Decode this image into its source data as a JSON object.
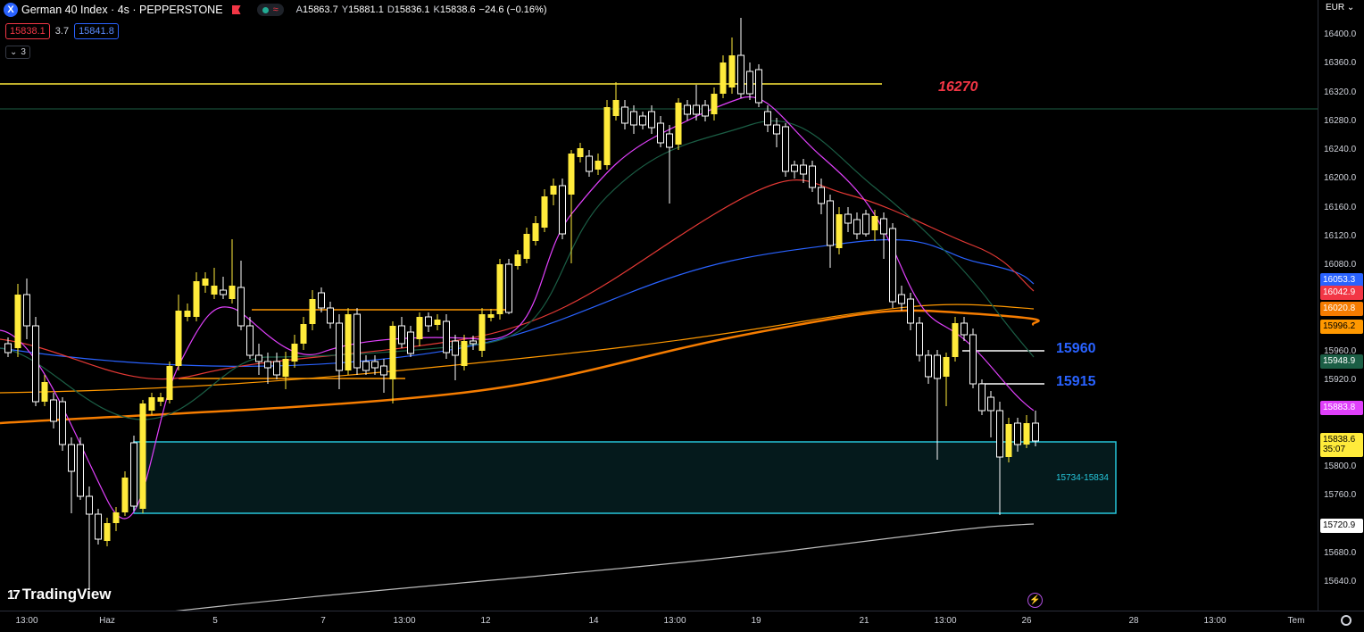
{
  "header": {
    "symbol_icon": "X",
    "title": "German 40 Index · 4s · PEPPERSTONE",
    "ohlc": [
      {
        "k": "A",
        "v": "15863.7"
      },
      {
        "k": "Y",
        "v": "15881.1"
      },
      {
        "k": "D",
        "v": "15836.1"
      },
      {
        "k": "K",
        "v": "15838.6"
      },
      {
        "k": "",
        "v": "−24.6 (−0.16%)"
      }
    ],
    "sell_price": "15838.1",
    "spread": "3.7",
    "buy_price": "15841.8",
    "indicator_count": "3",
    "indicator_toggle_icon": "chevron-down-icon"
  },
  "annotations": {
    "level_16270": "16270",
    "level_15960": "15960",
    "level_15915": "15915",
    "zone": "15734-15834"
  },
  "price_axis": {
    "currency": "EUR",
    "ticks": [
      "16400.0",
      "16360.0",
      "16320.0",
      "16280.0",
      "16240.0",
      "16200.0",
      "16160.0",
      "16120.0",
      "16080.0",
      "15960.0",
      "15920.0",
      "15800.0",
      "15760.0",
      "15680.0",
      "15640.0"
    ],
    "tags": [
      {
        "text": "16053.3",
        "bg": "#2962ff",
        "fg": "#ffffff"
      },
      {
        "text": "16042.9",
        "bg": "#f23645",
        "fg": "#ffffff"
      },
      {
        "text": "16020.8",
        "bg": "#f57c00",
        "fg": "#ffffff"
      },
      {
        "text": "15996.2",
        "bg": "#ff9800",
        "fg": "#000000"
      },
      {
        "text": "15948.9",
        "bg": "#1b5e45",
        "fg": "#ffffff"
      },
      {
        "text": "15883.8",
        "bg": "#e040fb",
        "fg": "#ffffff"
      },
      {
        "text": "15838.6",
        "bg": "#ffeb3b",
        "fg": "#000000"
      },
      {
        "text": "35:07",
        "bg": "#ffeb3b",
        "fg": "#000000"
      },
      {
        "text": "15720.9",
        "bg": "#ffffff",
        "fg": "#000000"
      }
    ]
  },
  "time_axis": {
    "labels": [
      "13:00",
      "Haz",
      "5",
      "7",
      "13:00",
      "12",
      "14",
      "13:00",
      "19",
      "21",
      "13:00",
      "26",
      "28",
      "13:00",
      "Tem"
    ]
  },
  "branding": {
    "logo_text": "TradingView",
    "logo_mark": "17"
  },
  "colors": {
    "bull": "#ffeb3b",
    "bear": "#ffffff",
    "ema_magenta": "#e040fb",
    "ema_green": "#1b5e45",
    "ema_red": "#e53935",
    "ema_blue": "#2962ff",
    "ema_orange": "#ff9800",
    "ema_orange_dark": "#f57c00",
    "zone": "#26c6da"
  },
  "icons": {
    "symbol": "x-symbol-icon",
    "flag": "flag-icon",
    "status": "market-open-icon",
    "wave": "wave-icon",
    "flash": "flash-icon",
    "settings": "gear-icon"
  }
}
